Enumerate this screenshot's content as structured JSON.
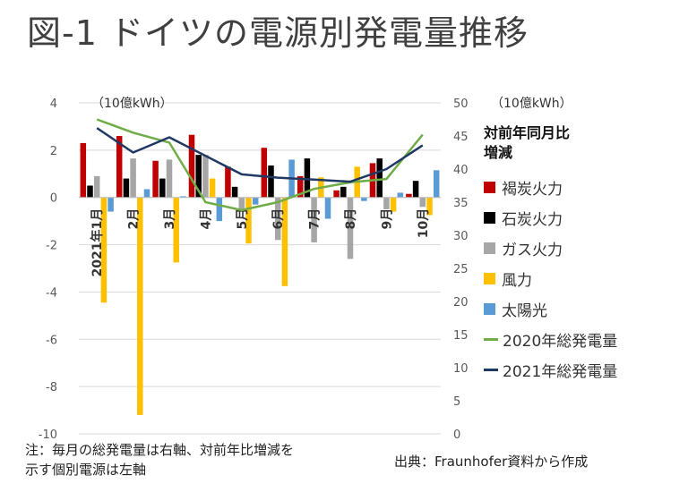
{
  "title": "図-1 ドイツの電源別発電量推移",
  "chart_data": {
    "type": "bar",
    "left_unit": "（10億kWh）",
    "right_unit": "（10億kWh）",
    "categories": [
      "2021年1月",
      "2月",
      "3月",
      "4月",
      "5月",
      "6月",
      "7月",
      "8月",
      "9月",
      "10月"
    ],
    "left_axis": {
      "ylim": [
        -10,
        4
      ],
      "ticks": [
        "-10",
        "-8",
        "-6",
        "-4",
        "-2",
        "0",
        "2",
        "4"
      ]
    },
    "right_axis": {
      "ylim": [
        0,
        50
      ],
      "ticks": [
        "0",
        "5",
        "10",
        "15",
        "20",
        "25",
        "30",
        "35",
        "40",
        "45",
        "50"
      ]
    },
    "legend_title": "対前年同月比\n増減",
    "grid": true,
    "series": [
      {
        "name": "褐炭火力",
        "type": "bar",
        "color": "#c00000",
        "values": [
          2.3,
          2.6,
          1.55,
          2.65,
          1.3,
          2.1,
          0.9,
          0.3,
          1.45,
          0.15
        ]
      },
      {
        "name": "石炭火力",
        "type": "bar",
        "color": "#000000",
        "values": [
          0.5,
          0.8,
          0.8,
          1.8,
          0.45,
          1.35,
          1.65,
          0.45,
          1.65,
          0.7
        ]
      },
      {
        "name": "ガス火力",
        "type": "bar",
        "color": "#a6a6a6",
        "values": [
          0.9,
          1.65,
          1.6,
          1.8,
          -0.5,
          -1.8,
          -1.9,
          -2.6,
          -0.5,
          -0.4
        ]
      },
      {
        "name": "風力",
        "type": "bar",
        "color": "#ffc000",
        "values": [
          -4.45,
          -9.2,
          -2.75,
          0.8,
          -1.95,
          -3.75,
          0.85,
          1.3,
          -0.6,
          -0.75
        ]
      },
      {
        "name": "太陽光",
        "type": "bar",
        "color": "#5b9bd5",
        "values": [
          -0.6,
          0.35,
          0.05,
          -1.0,
          -0.3,
          1.6,
          -0.9,
          -0.15,
          0.2,
          1.15
        ]
      },
      {
        "name": "2020年総発電量",
        "type": "line",
        "axis": "right",
        "color": "#70ad47",
        "values": [
          47.5,
          45.5,
          44.0,
          35.0,
          33.8,
          35.0,
          37.0,
          38.0,
          38.5,
          45.2
        ]
      },
      {
        "name": "2021年総発電量",
        "type": "line",
        "axis": "right",
        "color": "#1f3864",
        "values": [
          46.2,
          42.5,
          44.8,
          42.0,
          39.2,
          38.7,
          38.4,
          38.1,
          40.0,
          43.6
        ]
      }
    ]
  },
  "note": {
    "line1": "注：毎月の総発電量は右軸、対前年比増減を",
    "line2": "示す個別電源は左軸"
  },
  "source": "出典：Fraunhofer資料から作成"
}
